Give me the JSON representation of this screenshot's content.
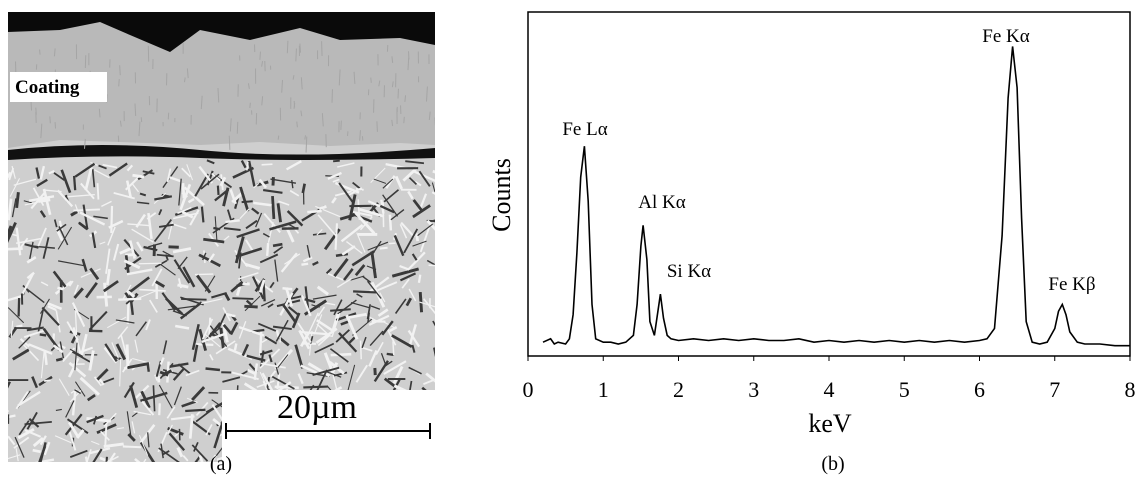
{
  "image": {
    "label": "Coating",
    "scale_bar": "20µm",
    "caption": "(a)"
  },
  "chart_data": {
    "type": "line",
    "caption": "(b)",
    "x_label": "keV",
    "y_label": "Counts",
    "xlim": [
      0,
      8
    ],
    "xticks": [
      0,
      1,
      2,
      3,
      4,
      5,
      6,
      7,
      8
    ],
    "ylim": [
      0,
      100
    ],
    "annotations": [
      "Fe Lα",
      "Al Kα",
      "Si Kα",
      "Fe Kα",
      "Fe Kβ"
    ],
    "series": [
      {
        "name": "spectrum",
        "color": "#000000",
        "x": [
          0.2,
          0.3,
          0.35,
          0.4,
          0.5,
          0.55,
          0.6,
          0.65,
          0.7,
          0.75,
          0.8,
          0.85,
          0.9,
          1.0,
          1.1,
          1.2,
          1.3,
          1.4,
          1.45,
          1.5,
          1.53,
          1.58,
          1.62,
          1.68,
          1.72,
          1.76,
          1.8,
          1.85,
          1.9,
          2.0,
          2.2,
          2.4,
          2.6,
          2.8,
          3.0,
          3.2,
          3.4,
          3.6,
          3.8,
          4.0,
          4.2,
          4.4,
          4.6,
          4.8,
          5.0,
          5.2,
          5.4,
          5.6,
          5.8,
          6.0,
          6.1,
          6.2,
          6.3,
          6.38,
          6.44,
          6.5,
          6.56,
          6.62,
          6.7,
          6.8,
          6.9,
          7.0,
          7.05,
          7.1,
          7.15,
          7.2,
          7.3,
          7.4,
          7.6,
          7.8,
          8.0
        ],
        "values": [
          4,
          5,
          3.5,
          4,
          3.5,
          5,
          12,
          30,
          52,
          61,
          45,
          15,
          5,
          4,
          4,
          3.5,
          4,
          6,
          15,
          32,
          38,
          28,
          10,
          6,
          12,
          18,
          11,
          6,
          5,
          4.5,
          5,
          4.5,
          5,
          4.5,
          5,
          4.5,
          4.5,
          5,
          4,
          4.5,
          4,
          4.5,
          4,
          4.5,
          4,
          4.5,
          4,
          4.5,
          4,
          4.5,
          5,
          8,
          35,
          75,
          90,
          78,
          40,
          10,
          4,
          3.5,
          4,
          8,
          13,
          15,
          12,
          7,
          4,
          3.5,
          3.5,
          3,
          3
        ]
      }
    ]
  }
}
